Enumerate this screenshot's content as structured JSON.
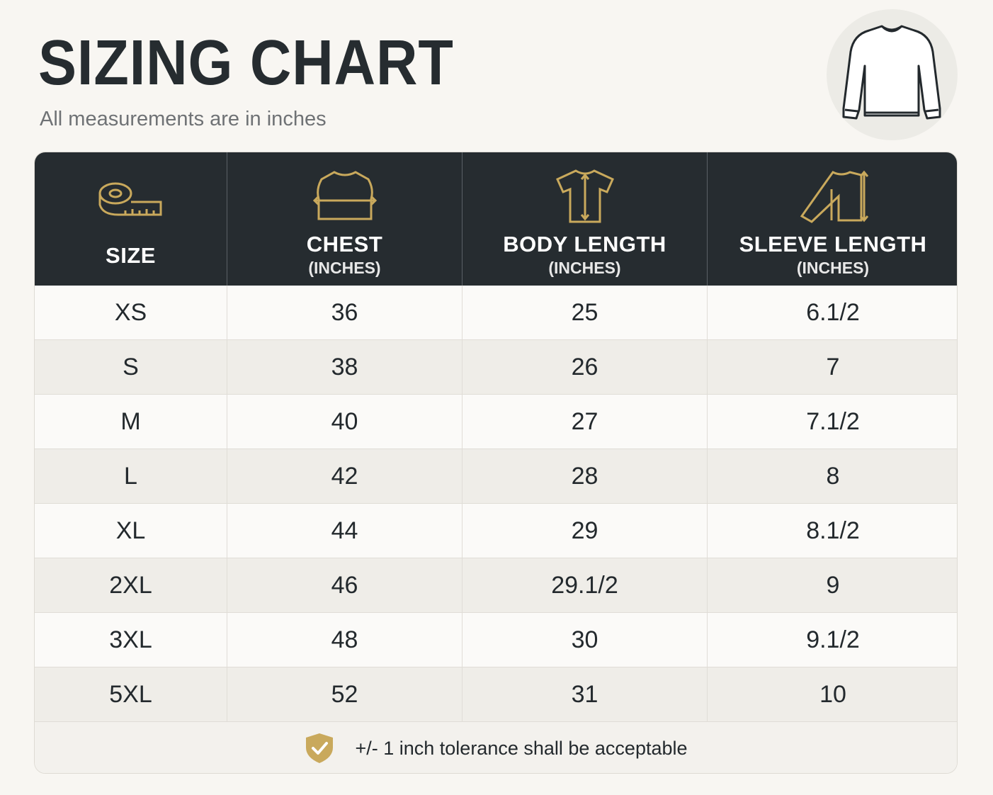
{
  "header": {
    "title": "SIZING CHART",
    "subtitle": "All measurements are in inches"
  },
  "table": {
    "columns": [
      {
        "label": "SIZE"
      },
      {
        "label": "CHEST",
        "unit": "(INCHES)"
      },
      {
        "label": "BODY LENGTH",
        "unit": "(INCHES)"
      },
      {
        "label": "SLEEVE LENGTH",
        "unit": "(INCHES)"
      }
    ],
    "rows": [
      [
        "XS",
        "36",
        "25",
        "6.1/2"
      ],
      [
        "S",
        "38",
        "26",
        "7"
      ],
      [
        "M",
        "40",
        "27",
        "7.1/2"
      ],
      [
        "L",
        "42",
        "28",
        "8"
      ],
      [
        "XL",
        "44",
        "29",
        "8.1/2"
      ],
      [
        "2XL",
        "46",
        "29.1/2",
        "9"
      ],
      [
        "3XL",
        "48",
        "30",
        "9.1/2"
      ],
      [
        "5XL",
        "52",
        "31",
        "10"
      ]
    ]
  },
  "footer": {
    "note": "+/- 1 inch tolerance shall be acceptable"
  }
}
